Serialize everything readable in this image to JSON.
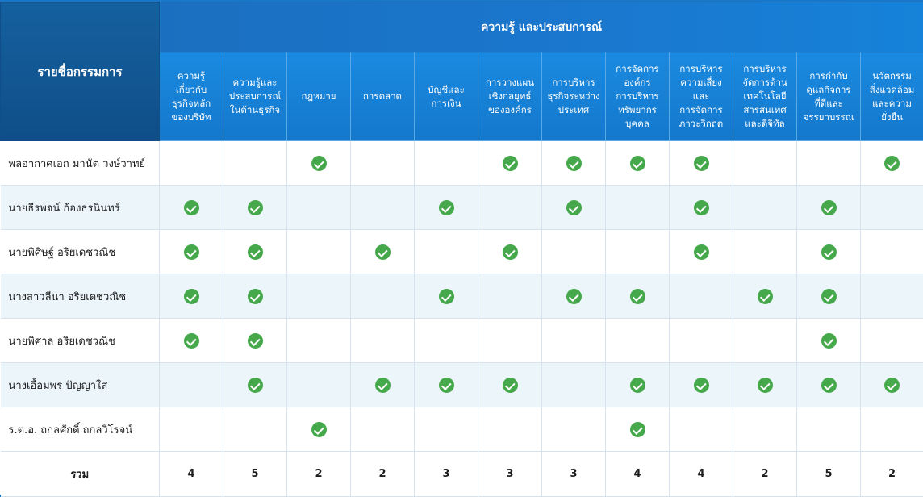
{
  "header": {
    "corner_label": "รายชื่อกรรมการ",
    "group_label": "ความรู้ และประสบการณ์",
    "columns": [
      "ความรู้เกี่ยวกับธุรกิจหลักของบริษัท",
      "ความรู้และประสบการณ์ในด้านธุรกิจ",
      "กฎหมาย",
      "การตลาด",
      "บัญชีและการเงิน",
      "การวางแผนเชิงกลยุทธ์ขององค์กร",
      "การบริหารธุรกิจระหว่างประเทศ",
      "การจัดการองค์กร การบริหารทรัพยากรบุคคล",
      "การบริหารความเสี่ยง และการจัดการภาวะวิกฤต",
      "การบริหารจัดการด้านเทคโนโลยีสารสนเทศ และดิจิทัล",
      "การกำกับดูแลกิจการที่ดี และจรรยาบรรณ",
      "นวัตกรรม สิ่งแวดล้อม และความยั่งยืน"
    ],
    "column_lines": [
      [
        "ความรู้",
        "เกี่ยวกับ",
        "ธุรกิจหลัก",
        "ของบริษัท"
      ],
      [
        "ความรู้และ",
        "ประสบการณ์",
        "ในด้านธุรกิจ"
      ],
      [
        "กฎหมาย"
      ],
      [
        "การตลาด"
      ],
      [
        "บัญชีและ",
        "การเงิน"
      ],
      [
        "การวางแผน",
        "เชิงกลยุทธ์",
        "ขององค์กร"
      ],
      [
        "การบริหาร",
        "ธุรกิจระหว่าง",
        "ประเทศ"
      ],
      [
        "การจัดการ",
        "องค์กร",
        "การบริหาร",
        "ทรัพยากร",
        "บุคคล"
      ],
      [
        "การบริหาร",
        "ความเสี่ยง",
        "และ",
        "การจัดการ",
        "ภาวะวิกฤต"
      ],
      [
        "การบริหาร",
        "จัดการด้าน",
        "เทคโนโลยี",
        "สารสนเทศ",
        "และดิจิทัล"
      ],
      [
        "การกำกับ",
        "ดูแลกิจการ",
        "ที่ดีและ",
        "จรรยาบรรณ"
      ],
      [
        "นวัตกรรม",
        "สิ่งแวดล้อม",
        "และความ",
        "ยั่งยืน"
      ]
    ]
  },
  "rows": [
    {
      "name": "พลอากาศเอก มานัต วงษ์วาทย์",
      "checks": [
        0,
        0,
        1,
        0,
        0,
        1,
        1,
        1,
        1,
        0,
        0,
        1
      ]
    },
    {
      "name": "นายธีรพจน์   ก้องธรนินทร์",
      "checks": [
        1,
        1,
        0,
        0,
        1,
        0,
        1,
        0,
        1,
        0,
        1,
        0
      ]
    },
    {
      "name": "นายพิศิษฐ์   อริยเดชวณิช",
      "checks": [
        1,
        1,
        0,
        1,
        0,
        1,
        0,
        0,
        1,
        0,
        1,
        0
      ]
    },
    {
      "name": "นางสาวลีนา   อริยเดชวณิช",
      "checks": [
        1,
        1,
        0,
        0,
        1,
        0,
        1,
        1,
        0,
        1,
        1,
        0
      ]
    },
    {
      "name": "นายพิศาล   อริยเดชวณิช",
      "checks": [
        1,
        1,
        0,
        0,
        0,
        0,
        0,
        0,
        0,
        0,
        1,
        0
      ]
    },
    {
      "name": "นางเอื้อมพร   ปัญญาใส",
      "checks": [
        0,
        1,
        0,
        1,
        1,
        1,
        0,
        1,
        1,
        1,
        1,
        1
      ]
    },
    {
      "name": "ร.ต.อ. ถกลศักดิ์   ถกลวิโรจน์",
      "checks": [
        0,
        0,
        1,
        0,
        0,
        0,
        0,
        1,
        0,
        0,
        0,
        0
      ]
    }
  ],
  "totals": {
    "label": "รวม",
    "values": [
      "4",
      "5",
      "2",
      "2",
      "3",
      "3",
      "3",
      "4",
      "4",
      "2",
      "5",
      "2"
    ]
  },
  "icons": {
    "check": "check-circle-icon"
  },
  "colors": {
    "header_dark": "#0f4e88",
    "header_blue": "#1a78cf",
    "check_green": "#45a84a",
    "row_alt": "#ebf5fa"
  }
}
